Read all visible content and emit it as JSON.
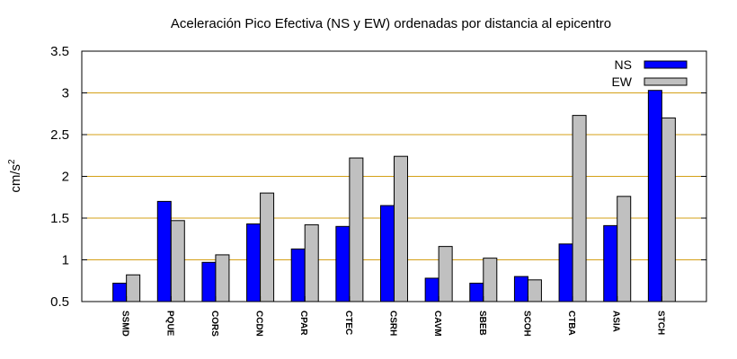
{
  "chart_data": {
    "type": "bar",
    "title": "Aceleración Pico Efectiva (NS y EW) ordenadas por distancia al epicentro",
    "xlabel": "",
    "ylabel": "cm/s",
    "ylabel_superscript": "2",
    "ylim": [
      0.5,
      3.5
    ],
    "yticks": [
      "0.5",
      "1",
      "1.5",
      "2",
      "2.5",
      "3",
      "3.5"
    ],
    "grid": true,
    "legend_position": "top-right",
    "categories": [
      "SSMD",
      "PQUE",
      "CORS",
      "CCDN",
      "CPAR",
      "CTEC",
      "CSRH",
      "CAVM",
      "SBEB",
      "SCOH",
      "CTBA",
      "ASIA",
      "STCH"
    ],
    "series": [
      {
        "name": "NS",
        "color": "#0000ff",
        "values": [
          0.72,
          1.7,
          0.97,
          1.43,
          1.13,
          1.4,
          1.65,
          0.78,
          0.72,
          0.8,
          1.19,
          1.41,
          3.03
        ]
      },
      {
        "name": "EW",
        "color": "#c0c0c0",
        "values": [
          0.82,
          1.47,
          1.06,
          1.8,
          1.42,
          2.22,
          2.24,
          1.16,
          1.02,
          0.76,
          2.73,
          1.76,
          2.7
        ]
      }
    ]
  }
}
